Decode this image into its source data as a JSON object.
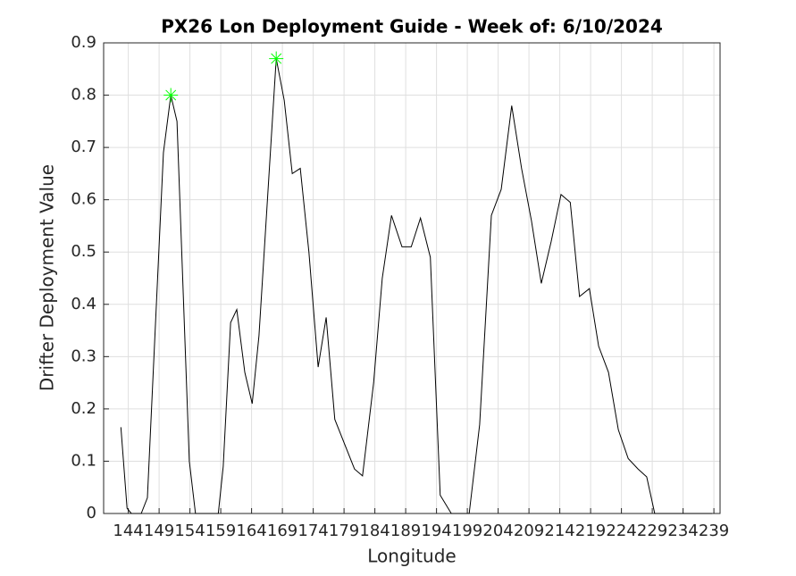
{
  "chart_data": {
    "type": "line",
    "title": "PX26 Lon Deployment Guide - Week of: 6/10/2024",
    "x_label": "Longitude",
    "y_label": "Drifter Deployment Value",
    "x": [
      142.8,
      143.8,
      144.5,
      146.1,
      147.1,
      149.7,
      150.9,
      151.9,
      153.9,
      154.9,
      158.6,
      159.4,
      160.6,
      161.6,
      162.9,
      164.1,
      165.2,
      168.0,
      169.3,
      170.6,
      171.9,
      173.3,
      174.8,
      176.1,
      177.5,
      180.7,
      182.0,
      183.8,
      185.2,
      186.7,
      188.4,
      189.9,
      191.4,
      193.0,
      194.6,
      196.4,
      199.3,
      201.0,
      202.9,
      204.5,
      206.2,
      207.8,
      209.4,
      211.0,
      212.6,
      214.2,
      215.7,
      217.2,
      218.8,
      220.3,
      221.9,
      223.5,
      225.1,
      226.7,
      228.1,
      229.4,
      231.0,
      238.7
    ],
    "series": [
      {
        "color": "#000000",
        "values": [
          0.165,
          0.01,
          0,
          0,
          0.03,
          0.69,
          0.8,
          0.75,
          0.1,
          0,
          0,
          0.09,
          0.365,
          0.39,
          0.27,
          0.21,
          0.34,
          0.87,
          0.79,
          0.65,
          0.66,
          0.5,
          0.28,
          0.375,
          0.18,
          0.085,
          0.072,
          0.25,
          0.45,
          0.57,
          0.51,
          0.51,
          0.565,
          0.49,
          0.035,
          0,
          0,
          0.17,
          0.57,
          0.62,
          0.78,
          0.66,
          0.56,
          0.44,
          0.52,
          0.61,
          0.595,
          0.415,
          0.43,
          0.32,
          0.27,
          0.16,
          0.105,
          0.085,
          0.07,
          0,
          0,
          0
        ]
      }
    ],
    "markers": {
      "color": "#00ff00",
      "x": [
        150.9,
        168.0
      ],
      "values": [
        0.8,
        0.87
      ]
    },
    "xlim": [
      140,
      240
    ],
    "ylim": [
      0,
      0.9
    ],
    "xticks": [
      144,
      149,
      154,
      159,
      164,
      169,
      174,
      179,
      184,
      189,
      194,
      199,
      204,
      209,
      214,
      219,
      224,
      229,
      234,
      239
    ],
    "yticks": [
      0,
      0.1,
      0.2,
      0.3,
      0.4,
      0.5,
      0.6,
      0.7,
      0.8,
      0.9
    ],
    "grid": true
  }
}
